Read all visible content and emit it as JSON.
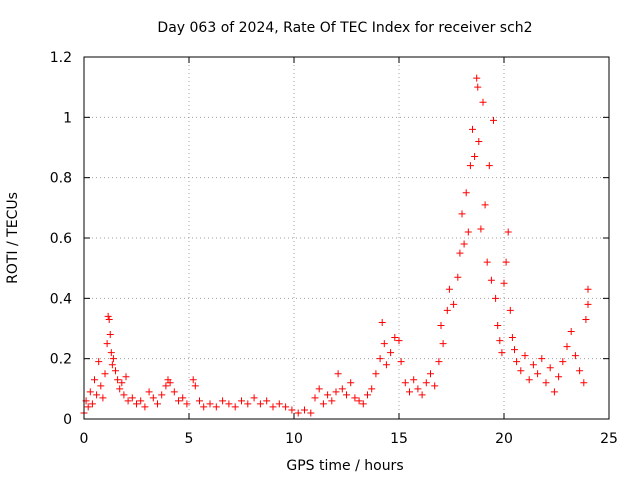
{
  "chart_data": {
    "type": "scatter",
    "title": "Day 063 of 2024, Rate Of TEC Index for receiver sch2",
    "xlabel": "GPS time / hours",
    "ylabel": "ROTI / TECUs",
    "xlim": [
      0,
      25
    ],
    "ylim": [
      0,
      1.2
    ],
    "x_ticks": [
      0,
      5,
      10,
      15,
      20,
      25
    ],
    "y_ticks": [
      0,
      0.2,
      0.4,
      0.6,
      0.8,
      1,
      1.2
    ],
    "x_tick_labels": [
      "0",
      "5",
      "10",
      "15",
      "20",
      "25"
    ],
    "y_tick_labels": [
      "0",
      "0.2",
      "0.4",
      "0.6",
      "0.8",
      "1",
      "1.2"
    ],
    "grid": true,
    "marker": "+",
    "marker_color": "#ff0000",
    "series": [
      {
        "name": "",
        "points": [
          [
            0.0,
            0.02
          ],
          [
            0.1,
            0.06
          ],
          [
            0.2,
            0.04
          ],
          [
            0.3,
            0.09
          ],
          [
            0.4,
            0.05
          ],
          [
            0.5,
            0.13
          ],
          [
            0.6,
            0.08
          ],
          [
            0.7,
            0.19
          ],
          [
            0.8,
            0.11
          ],
          [
            0.9,
            0.07
          ],
          [
            1.0,
            0.15
          ],
          [
            1.1,
            0.25
          ],
          [
            1.15,
            0.34
          ],
          [
            1.2,
            0.33
          ],
          [
            1.25,
            0.28
          ],
          [
            1.3,
            0.22
          ],
          [
            1.35,
            0.18
          ],
          [
            1.4,
            0.2
          ],
          [
            1.5,
            0.16
          ],
          [
            1.6,
            0.13
          ],
          [
            1.7,
            0.1
          ],
          [
            1.8,
            0.12
          ],
          [
            1.9,
            0.08
          ],
          [
            2.0,
            0.14
          ],
          [
            2.1,
            0.06
          ],
          [
            2.3,
            0.07
          ],
          [
            2.5,
            0.05
          ],
          [
            2.7,
            0.06
          ],
          [
            2.9,
            0.04
          ],
          [
            3.1,
            0.09
          ],
          [
            3.3,
            0.07
          ],
          [
            3.5,
            0.05
          ],
          [
            3.7,
            0.08
          ],
          [
            3.9,
            0.11
          ],
          [
            4.0,
            0.13
          ],
          [
            4.1,
            0.12
          ],
          [
            4.3,
            0.09
          ],
          [
            4.5,
            0.06
          ],
          [
            4.7,
            0.07
          ],
          [
            4.9,
            0.05
          ],
          [
            5.2,
            0.13
          ],
          [
            5.3,
            0.11
          ],
          [
            5.5,
            0.06
          ],
          [
            5.7,
            0.04
          ],
          [
            6.0,
            0.05
          ],
          [
            6.3,
            0.04
          ],
          [
            6.6,
            0.06
          ],
          [
            6.9,
            0.05
          ],
          [
            7.2,
            0.04
          ],
          [
            7.5,
            0.06
          ],
          [
            7.8,
            0.05
          ],
          [
            8.1,
            0.07
          ],
          [
            8.4,
            0.05
          ],
          [
            8.7,
            0.06
          ],
          [
            9.0,
            0.04
          ],
          [
            9.3,
            0.05
          ],
          [
            9.6,
            0.04
          ],
          [
            9.9,
            0.03
          ],
          [
            10.2,
            0.02
          ],
          [
            10.5,
            0.03
          ],
          [
            10.8,
            0.02
          ],
          [
            11.0,
            0.07
          ],
          [
            11.2,
            0.1
          ],
          [
            11.4,
            0.05
          ],
          [
            11.6,
            0.08
          ],
          [
            11.8,
            0.06
          ],
          [
            12.0,
            0.09
          ],
          [
            12.1,
            0.15
          ],
          [
            12.3,
            0.1
          ],
          [
            12.5,
            0.08
          ],
          [
            12.7,
            0.12
          ],
          [
            12.9,
            0.07
          ],
          [
            13.1,
            0.06
          ],
          [
            13.3,
            0.05
          ],
          [
            13.5,
            0.08
          ],
          [
            13.7,
            0.1
          ],
          [
            13.9,
            0.15
          ],
          [
            14.1,
            0.2
          ],
          [
            14.2,
            0.32
          ],
          [
            14.3,
            0.25
          ],
          [
            14.4,
            0.18
          ],
          [
            14.6,
            0.22
          ],
          [
            14.8,
            0.27
          ],
          [
            15.0,
            0.26
          ],
          [
            15.1,
            0.19
          ],
          [
            15.3,
            0.12
          ],
          [
            15.5,
            0.09
          ],
          [
            15.7,
            0.13
          ],
          [
            15.9,
            0.1
          ],
          [
            16.1,
            0.08
          ],
          [
            16.3,
            0.12
          ],
          [
            16.5,
            0.15
          ],
          [
            16.7,
            0.11
          ],
          [
            16.9,
            0.19
          ],
          [
            17.0,
            0.31
          ],
          [
            17.1,
            0.25
          ],
          [
            17.3,
            0.36
          ],
          [
            17.4,
            0.43
          ],
          [
            17.6,
            0.38
          ],
          [
            17.8,
            0.47
          ],
          [
            17.9,
            0.55
          ],
          [
            18.0,
            0.68
          ],
          [
            18.1,
            0.58
          ],
          [
            18.2,
            0.75
          ],
          [
            18.3,
            0.62
          ],
          [
            18.4,
            0.84
          ],
          [
            18.5,
            0.96
          ],
          [
            18.6,
            0.87
          ],
          [
            18.7,
            1.13
          ],
          [
            18.75,
            1.1
          ],
          [
            18.8,
            0.92
          ],
          [
            18.9,
            0.63
          ],
          [
            19.0,
            1.05
          ],
          [
            19.1,
            0.71
          ],
          [
            19.2,
            0.52
          ],
          [
            19.3,
            0.84
          ],
          [
            19.4,
            0.46
          ],
          [
            19.5,
            0.99
          ],
          [
            19.6,
            0.4
          ],
          [
            19.7,
            0.31
          ],
          [
            19.8,
            0.26
          ],
          [
            19.9,
            0.22
          ],
          [
            20.0,
            0.45
          ],
          [
            20.1,
            0.52
          ],
          [
            20.2,
            0.62
          ],
          [
            20.3,
            0.36
          ],
          [
            20.4,
            0.27
          ],
          [
            20.5,
            0.23
          ],
          [
            20.6,
            0.19
          ],
          [
            20.8,
            0.16
          ],
          [
            21.0,
            0.21
          ],
          [
            21.2,
            0.13
          ],
          [
            21.4,
            0.18
          ],
          [
            21.6,
            0.15
          ],
          [
            21.8,
            0.2
          ],
          [
            22.0,
            0.12
          ],
          [
            22.2,
            0.17
          ],
          [
            22.4,
            0.09
          ],
          [
            22.6,
            0.14
          ],
          [
            22.8,
            0.19
          ],
          [
            23.0,
            0.24
          ],
          [
            23.2,
            0.29
          ],
          [
            23.4,
            0.21
          ],
          [
            23.6,
            0.16
          ],
          [
            23.8,
            0.12
          ],
          [
            23.9,
            0.33
          ],
          [
            24.0,
            0.43
          ],
          [
            24.0,
            0.38
          ]
        ]
      }
    ]
  }
}
